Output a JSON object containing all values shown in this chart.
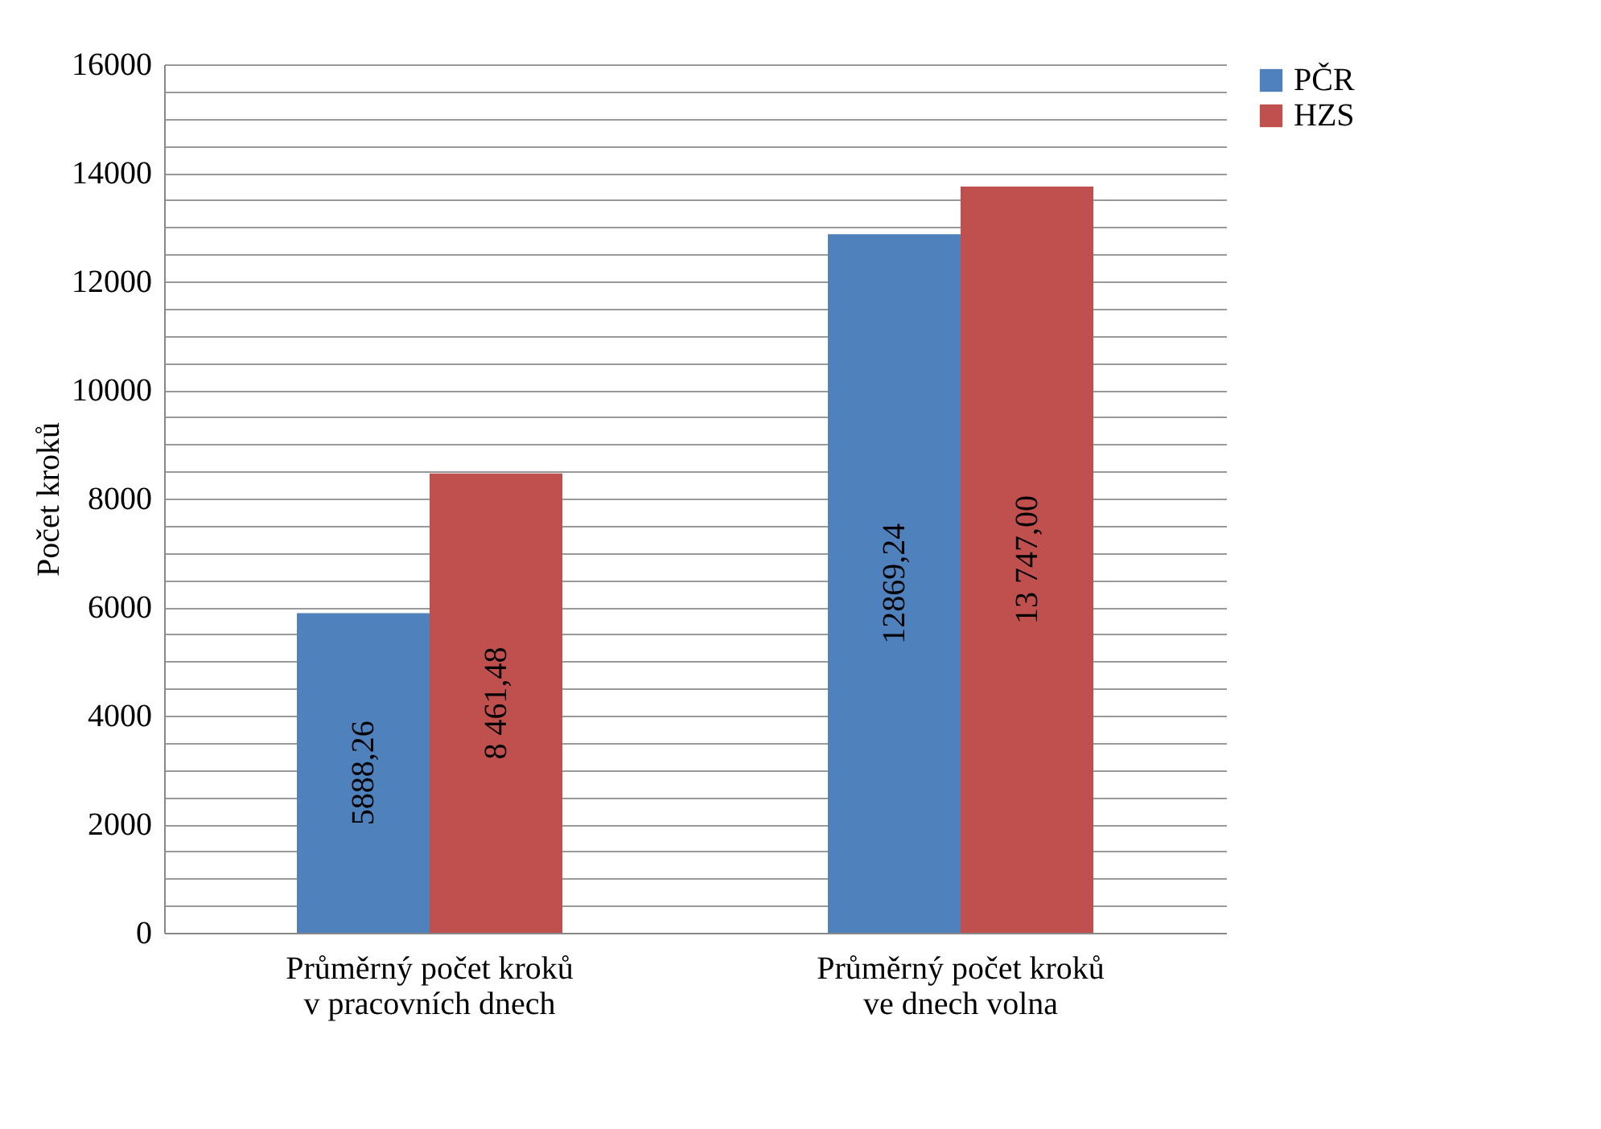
{
  "chart_data": {
    "type": "bar",
    "ylabel": "Počet kroků",
    "categories": [
      "Průměrný počet kroků\nv pracovních dnech",
      "Průměrný počet kroků\nve dnech volna"
    ],
    "series": [
      {
        "name": "PČR",
        "color": "#4f81bd",
        "values": [
          5888.26,
          12869.24
        ],
        "value_labels": [
          "5888,26",
          "12869,24"
        ]
      },
      {
        "name": "HZS",
        "color": "#c0504d",
        "values": [
          8461.48,
          13747.0
        ],
        "value_labels": [
          "8 461,48",
          "13 747,00"
        ]
      }
    ],
    "ylim": [
      0,
      16000
    ],
    "yticks": [
      0,
      {
        "value": 500,
        "label": null
      },
      {
        "value": 1000,
        "label": null
      },
      {
        "value": 1500,
        "label": null
      },
      2000,
      {
        "value": 2500,
        "label": null
      },
      {
        "value": 3000,
        "label": null
      },
      {
        "value": 3500,
        "label": null
      },
      4000,
      {
        "value": 4500,
        "label": null
      },
      {
        "value": 5000,
        "label": null
      },
      {
        "value": 5500,
        "label": null
      },
      6000,
      {
        "value": 6500,
        "label": null
      },
      {
        "value": 7000,
        "label": null
      },
      {
        "value": 7500,
        "label": null
      },
      8000,
      {
        "value": 8500,
        "label": null
      },
      {
        "value": 9000,
        "label": null
      },
      {
        "value": 9500,
        "label": null
      },
      10000,
      {
        "value": 10500,
        "label": null
      },
      {
        "value": 11000,
        "label": null
      },
      {
        "value": 11500,
        "label": null
      },
      12000,
      {
        "value": 12500,
        "label": null
      },
      {
        "value": 13000,
        "label": null
      },
      {
        "value": 13500,
        "label": null
      },
      14000,
      {
        "value": 14500,
        "label": null
      },
      {
        "value": 15000,
        "label": null
      },
      {
        "value": 15500,
        "label": null
      },
      16000
    ],
    "grid": "y",
    "legend": "right"
  }
}
